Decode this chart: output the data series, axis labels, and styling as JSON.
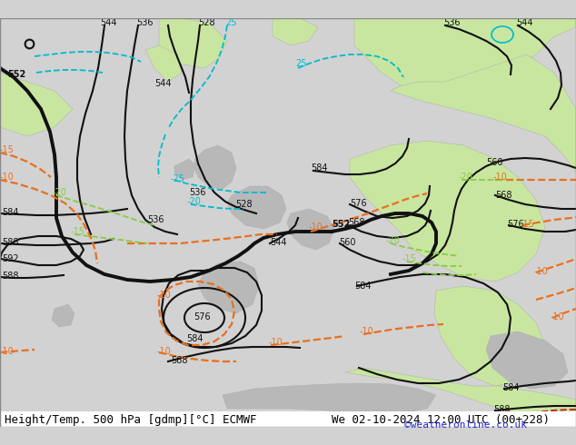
{
  "title_left": "Height/Temp. 500 hPa [gdmp][°C] ECMWF",
  "title_right": "We 02-10-2024 12:00 UTC (00+228)",
  "credit": "©weatheronline.co.uk",
  "figsize": [
    6.34,
    4.9
  ],
  "dpi": 100,
  "bg_gray": "#d2d2d2",
  "land_green": "#c8e6a0",
  "land_gray": "#b8b8b8",
  "black": "#111111",
  "orange": "#e87020",
  "cyan": "#00bbcc",
  "green_line": "#88cc44",
  "red_line": "#cc2222",
  "white": "#ffffff",
  "credit_color": "#2222cc"
}
